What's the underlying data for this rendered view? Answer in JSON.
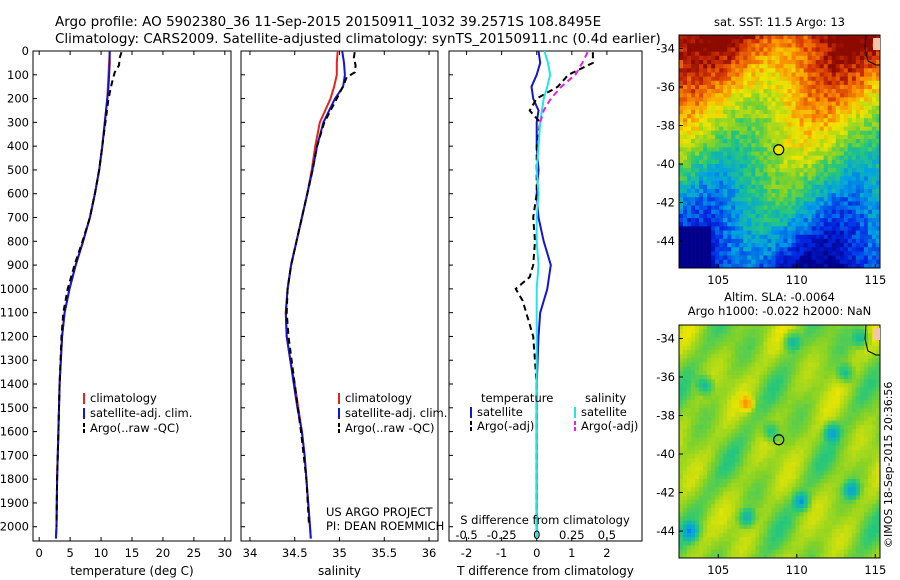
{
  "header": {
    "line1": "Argo profile: AO 5902380_36 11-Sep-2015 20150911_1032 39.2571S 108.8495E",
    "line2": "Climatology: CARS2009. Satellite-adjusted climatology: synTS_20150911.nc (0.4d earlier)"
  },
  "colors": {
    "climatology": "#e8231b",
    "satellite": "#1414d2",
    "argo": "#000000",
    "sal_satellite": "#22e6e6",
    "sal_argo": "#e61ee6"
  },
  "chart_data": [
    {
      "id": "temperature",
      "type": "line",
      "xlabel": "temperature (deg C)",
      "ylabel": "",
      "xlim": [
        -1,
        31
      ],
      "ylim": [
        2060,
        0
      ],
      "xticks": [
        "0",
        "5",
        "10",
        "15",
        "20",
        "25",
        "30"
      ],
      "xtick_values": [
        0,
        5,
        10,
        15,
        20,
        25,
        30
      ],
      "yticks": [
        "0",
        "100",
        "200",
        "300",
        "400",
        "500",
        "600",
        "700",
        "800",
        "900",
        "1000",
        "1100",
        "1200",
        "1300",
        "1400",
        "1500",
        "1600",
        "1700",
        "1800",
        "1900",
        "2000"
      ],
      "ytick_values": [
        0,
        100,
        200,
        300,
        400,
        500,
        600,
        700,
        800,
        900,
        1000,
        1100,
        1200,
        1300,
        1400,
        1500,
        1600,
        1700,
        1800,
        1900,
        2000
      ],
      "legend": [
        "climatology",
        "satellite-adj. clim.",
        "Argo(..raw -QC)"
      ],
      "legend_position": "lower-right",
      "series": [
        {
          "name": "climatology",
          "color": "#e8231b",
          "dash": "",
          "pressure": [
            0,
            50,
            100,
            150,
            200,
            300,
            400,
            500,
            600,
            700,
            800,
            900,
            1000,
            1100,
            1200,
            1400,
            1600,
            1800,
            2000,
            2050
          ],
          "values": [
            11.4,
            11.3,
            11.2,
            11.1,
            11.0,
            10.6,
            10.2,
            9.7,
            9.0,
            8.2,
            7.1,
            5.9,
            4.9,
            4.1,
            3.7,
            3.3,
            3.1,
            2.9,
            2.8,
            2.7
          ]
        },
        {
          "name": "satellite-adj. clim.",
          "color": "#1414d2",
          "dash": "",
          "pressure": [
            0,
            50,
            100,
            150,
            200,
            300,
            400,
            500,
            600,
            700,
            800,
            900,
            1000,
            1100,
            1200,
            1400,
            1600,
            1800,
            2000,
            2050
          ],
          "values": [
            11.4,
            11.4,
            11.3,
            11.2,
            11.0,
            10.6,
            10.2,
            9.7,
            9.0,
            8.2,
            7.1,
            5.9,
            4.9,
            4.1,
            3.7,
            3.3,
            3.1,
            2.9,
            2.8,
            2.7
          ]
        },
        {
          "name": "Argo(..raw -QC)",
          "color": "#000000",
          "dash": "6,4",
          "pressure": [
            5,
            30,
            60,
            90,
            110,
            140,
            200,
            300,
            400,
            500,
            600,
            700,
            800,
            900,
            1000,
            1100,
            1200,
            1400,
            1600,
            1800,
            2000
          ],
          "values": [
            13.3,
            13.0,
            12.9,
            12.2,
            12.0,
            11.7,
            11.2,
            10.7,
            10.2,
            9.7,
            9.0,
            8.2,
            7.0,
            5.7,
            4.6,
            3.9,
            3.6,
            3.3,
            3.1,
            2.9,
            2.8
          ]
        }
      ]
    },
    {
      "id": "salinity",
      "type": "line",
      "xlabel": "salinity",
      "xlim": [
        33.9,
        36.1
      ],
      "ylim": [
        2060,
        0
      ],
      "xticks": [
        "34",
        "34.5",
        "35",
        "35.5",
        "36"
      ],
      "xtick_values": [
        34,
        34.5,
        35,
        35.5,
        36
      ],
      "legend": [
        "climatology",
        "satellite-adj. clim.",
        "Argo(..raw -QC)"
      ],
      "legend_position": "lower-right",
      "annotations": [
        "US ARGO PROJECT",
        "PI: DEAN ROEMMICH"
      ],
      "series": [
        {
          "name": "climatology",
          "color": "#e8231b",
          "dash": "",
          "pressure": [
            0,
            50,
            100,
            150,
            200,
            300,
            400,
            500,
            600,
            700,
            800,
            900,
            1000,
            1100,
            1200,
            1300,
            1400,
            1500,
            1600,
            1700,
            1800,
            1900,
            2000,
            2050
          ],
          "values": [
            34.98,
            34.97,
            34.97,
            34.94,
            34.9,
            34.78,
            34.73,
            34.69,
            34.64,
            34.58,
            34.52,
            34.46,
            34.42,
            34.4,
            34.41,
            34.45,
            34.5,
            34.54,
            34.58,
            34.61,
            34.63,
            34.65,
            34.67,
            34.68
          ]
        },
        {
          "name": "satellite-adj. clim.",
          "color": "#1414d2",
          "dash": "",
          "pressure": [
            0,
            50,
            100,
            150,
            200,
            300,
            400,
            500,
            600,
            700,
            800,
            900,
            1000,
            1100,
            1200,
            1300,
            1400,
            1500,
            1600,
            1700,
            1800,
            1900,
            2000,
            2050
          ],
          "values": [
            35.03,
            35.05,
            35.06,
            35.04,
            34.95,
            34.82,
            34.75,
            34.7,
            34.64,
            34.58,
            34.52,
            34.46,
            34.42,
            34.4,
            34.41,
            34.45,
            34.49,
            34.53,
            34.58,
            34.61,
            34.63,
            34.65,
            34.67,
            34.68
          ]
        },
        {
          "name": "Argo(..raw -QC)",
          "color": "#000000",
          "dash": "6,4",
          "pressure": [
            5,
            30,
            60,
            90,
            110,
            140,
            200,
            300,
            400,
            500,
            600,
            700,
            800,
            900,
            1000,
            1100,
            1200,
            1400,
            1600,
            1800,
            2000
          ],
          "values": [
            35.17,
            35.16,
            35.18,
            35.17,
            35.08,
            35.05,
            34.97,
            34.83,
            34.75,
            34.7,
            34.64,
            34.58,
            34.52,
            34.46,
            34.42,
            34.41,
            34.43,
            34.5,
            34.57,
            34.63,
            34.66
          ]
        }
      ]
    },
    {
      "id": "differences",
      "type": "line",
      "xlabel": "T difference from climatology",
      "top_axis_label": "S difference from climatology",
      "xlim": [
        -2.5,
        3.0
      ],
      "ylim": [
        2060,
        0
      ],
      "xticks": [
        "-2",
        "-1",
        "0",
        "1",
        "2"
      ],
      "xtick_values": [
        -2,
        -1,
        0,
        1,
        2
      ],
      "sticks_labels": [
        "-0.5",
        "-0.25",
        "0",
        "0.25",
        "0.5"
      ],
      "stick_values": [
        -0.5,
        -0.25,
        0,
        0.25,
        0.5
      ],
      "legend": [
        "temperature",
        "satellite",
        "Argo(-adj)",
        "salinity",
        "satellite",
        "Argo(-adj)"
      ],
      "legend_position": "lower-center",
      "series": [
        {
          "name": "temperature satellite",
          "color": "#1414d2",
          "dash": "",
          "pressure": [
            0,
            50,
            100,
            150,
            200,
            250,
            300,
            400,
            500,
            600,
            700,
            800,
            850,
            900,
            950,
            1000,
            1100,
            1200,
            1400,
            1600,
            1800,
            2000,
            2050
          ],
          "values": [
            0.05,
            0.1,
            0.0,
            -0.15,
            -0.1,
            0.05,
            0.0,
            0.0,
            0.05,
            0.0,
            0.05,
            0.2,
            0.3,
            0.4,
            0.35,
            0.3,
            0.1,
            0.05,
            0.0,
            0.0,
            0.0,
            0.0,
            0.0
          ]
        },
        {
          "name": "temperature Argo(-adj)",
          "color": "#000000",
          "dash": "6,4",
          "pressure": [
            5,
            50,
            100,
            150,
            200,
            250,
            300,
            400,
            500,
            600,
            700,
            800,
            900,
            950,
            1000,
            1050,
            1100,
            1150,
            1200,
            1400,
            1600,
            1800,
            2000
          ],
          "values": [
            1.6,
            1.6,
            0.9,
            0.6,
            0.0,
            -0.2,
            0.1,
            0.0,
            0.0,
            0.0,
            -0.1,
            -0.05,
            -0.1,
            -0.2,
            -0.6,
            -0.4,
            -0.3,
            -0.2,
            -0.1,
            0.0,
            0.0,
            0.0,
            0.0
          ]
        },
        {
          "name": "salinity satellite",
          "color": "#22e6e6",
          "dash": "",
          "pressure": [
            0,
            50,
            100,
            150,
            200,
            300,
            400,
            500,
            600,
            700,
            800,
            900,
            1000,
            1100,
            1200,
            1400,
            1600,
            1800,
            2000,
            2050
          ],
          "values": [
            0.22,
            0.32,
            0.38,
            0.3,
            0.2,
            0.1,
            0.05,
            0.0,
            0.05,
            0.0,
            0.0,
            0.05,
            0.0,
            0.0,
            0.0,
            0.0,
            0.0,
            0.0,
            0.0,
            0.0
          ]
        },
        {
          "name": "salinity Argo(-adj)",
          "color": "#e61ee6",
          "dash": "6,4",
          "pressure": [
            5,
            50,
            100,
            150,
            200,
            250,
            300
          ],
          "values": [
            1.45,
            1.3,
            1.1,
            0.7,
            0.4,
            0.2,
            0.1
          ]
        }
      ]
    },
    {
      "id": "sst-map",
      "type": "heatmap",
      "title": "sat. SST: 11.5 Argo: 13",
      "xlim": [
        102.5,
        115.3
      ],
      "ylim": [
        -45.4,
        -33.3
      ],
      "xticks": [
        "105",
        "110",
        "115"
      ],
      "xtick_values": [
        105,
        110,
        115
      ],
      "yticks": [
        "-34",
        "-36",
        "-38",
        "-40",
        "-42",
        "-44"
      ],
      "ytick_values": [
        -34,
        -36,
        -38,
        -40,
        -42,
        -44
      ],
      "marker": {
        "lon": 108.85,
        "lat": -39.26
      }
    },
    {
      "id": "sla-map",
      "type": "heatmap",
      "title": "Altim. SLA: -0.0064",
      "subtitle": "Argo h1000: -0.022 h2000: NaN",
      "xlim": [
        102.5,
        115.3
      ],
      "ylim": [
        -45.4,
        -33.3
      ],
      "xticks": [
        "105",
        "110",
        "115"
      ],
      "xtick_values": [
        105,
        110,
        115
      ],
      "yticks": [
        "-34",
        "-36",
        "-38",
        "-40",
        "-42",
        "-44"
      ],
      "ytick_values": [
        -34,
        -36,
        -38,
        -40,
        -42,
        -44
      ],
      "marker": {
        "lon": 108.85,
        "lat": -39.26
      }
    }
  ],
  "footer": {
    "credit": "©IMOS 18-Sep-2015 20:36:56"
  }
}
